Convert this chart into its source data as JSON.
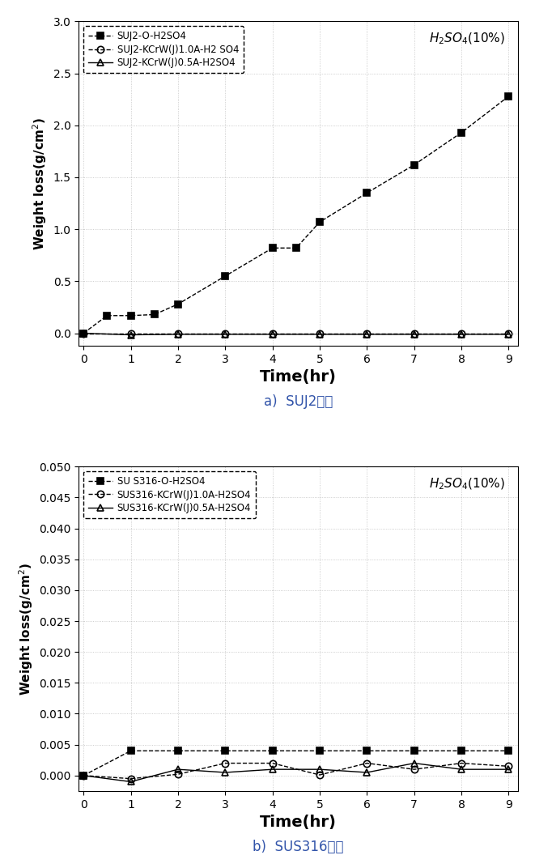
{
  "plot1": {
    "title_annotation": "$H_2SO_4$(10%)",
    "xlabel": "Time(hr)",
    "ylabel": "Weight loss(g/cm$^2$)",
    "xlim": [
      -0.1,
      9.2
    ],
    "ylim": [
      -0.12,
      3.0
    ],
    "yticks": [
      0.0,
      0.5,
      1.0,
      1.5,
      2.0,
      2.5,
      3.0
    ],
    "xticks": [
      0,
      1,
      2,
      3,
      4,
      5,
      6,
      7,
      8,
      9
    ],
    "series": [
      {
        "label": "SUJ2-O-H2SO4",
        "x": [
          0,
          0.5,
          1.0,
          1.5,
          2.0,
          3.0,
          4.0,
          4.5,
          5.0,
          6.0,
          7.0,
          8.0,
          9.0
        ],
        "y": [
          0.0,
          0.17,
          0.17,
          0.18,
          0.28,
          0.55,
          0.82,
          0.82,
          1.07,
          1.35,
          1.62,
          1.93,
          2.28
        ],
        "color": "black",
        "marker": "s",
        "fillstyle": "full",
        "linestyle": "--"
      },
      {
        "label": "SUJ2-KCrW(J)1.0A-H2 SO4",
        "x": [
          0,
          1,
          2,
          3,
          4,
          5,
          6,
          7,
          8,
          9
        ],
        "y": [
          0.0,
          0.0,
          0.0,
          0.0,
          0.0,
          0.0,
          0.0,
          0.0,
          0.0,
          0.0
        ],
        "color": "black",
        "marker": "o",
        "fillstyle": "none",
        "linestyle": "--"
      },
      {
        "label": "SUJ2-KCrW(J)0.5A-H2SO4",
        "x": [
          0,
          1,
          2,
          3,
          4,
          5,
          6,
          7,
          8,
          9
        ],
        "y": [
          0.0,
          -0.015,
          -0.01,
          -0.01,
          -0.01,
          -0.01,
          -0.01,
          -0.01,
          -0.01,
          -0.01
        ],
        "color": "black",
        "marker": "^",
        "fillstyle": "none",
        "linestyle": "-"
      }
    ],
    "caption": "a)  SUJ2소재",
    "caption_color": "#3355aa"
  },
  "plot2": {
    "title_annotation": "$H_2SO_4$(10%)",
    "xlabel": "Time(hr)",
    "ylabel": "Weight loss(g/cm$^2$)",
    "xlim": [
      -0.1,
      9.2
    ],
    "ylim": [
      -0.0025,
      0.05
    ],
    "yticks": [
      0.0,
      0.005,
      0.01,
      0.015,
      0.02,
      0.025,
      0.03,
      0.035,
      0.04,
      0.045,
      0.05
    ],
    "xticks": [
      0,
      1,
      2,
      3,
      4,
      5,
      6,
      7,
      8,
      9
    ],
    "series": [
      {
        "label": "SU S316-O-H2SO4",
        "x": [
          0,
          1,
          2,
          3,
          4,
          5,
          6,
          7,
          8,
          9
        ],
        "y": [
          0.0,
          0.004,
          0.004,
          0.004,
          0.004,
          0.004,
          0.004,
          0.004,
          0.004,
          0.004
        ],
        "color": "black",
        "marker": "s",
        "fillstyle": "full",
        "linestyle": "--"
      },
      {
        "label": "SUS316-KCrW(J)1.0A-H2SO4",
        "x": [
          0,
          1,
          2,
          3,
          4,
          5,
          6,
          7,
          8,
          9
        ],
        "y": [
          0.0,
          -0.0005,
          0.0002,
          0.002,
          0.002,
          0.0001,
          0.002,
          0.001,
          0.002,
          0.0015
        ],
        "color": "black",
        "marker": "o",
        "fillstyle": "none",
        "linestyle": "--"
      },
      {
        "label": "SUS316-KCrW(J)0.5A-H2SO4",
        "x": [
          0,
          1,
          2,
          3,
          4,
          5,
          6,
          7,
          8,
          9
        ],
        "y": [
          0.0,
          -0.001,
          0.001,
          0.0005,
          0.001,
          0.001,
          0.0005,
          0.002,
          0.001,
          0.001
        ],
        "color": "black",
        "marker": "^",
        "fillstyle": "none",
        "linestyle": "-"
      }
    ],
    "caption": "b)  SUS316소재",
    "caption_color": "#3355aa"
  }
}
